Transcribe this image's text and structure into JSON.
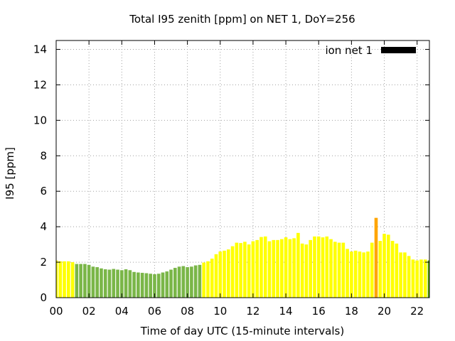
{
  "chart_data": {
    "type": "bar",
    "title": "Total I95 zenith [ppm] on NET 1, DoY=256",
    "xlabel": "Time of day UTC (15-minute intervals)",
    "ylabel": "I95 [ppm]",
    "xlim": [
      0,
      22.75
    ],
    "ylim": [
      0,
      14.5
    ],
    "x_ticks": [
      "00",
      "02",
      "04",
      "06",
      "08",
      "10",
      "12",
      "14",
      "16",
      "18",
      "20",
      "22"
    ],
    "y_ticks": [
      "0",
      "2",
      "4",
      "6",
      "8",
      "10",
      "12",
      "14"
    ],
    "grid": true,
    "legend": {
      "placement": "top-right",
      "label": "ion net 1",
      "color": "#000000"
    },
    "colors": {
      "green": "#7ab648",
      "yellow": "#ffff00",
      "orange": "#ffa500",
      "last": "#55aa00"
    },
    "bar_interval_hours": 0.25,
    "x": [
      0.0,
      0.25,
      0.5,
      0.75,
      1.0,
      1.25,
      1.5,
      1.75,
      2.0,
      2.25,
      2.5,
      2.75,
      3.0,
      3.25,
      3.5,
      3.75,
      4.0,
      4.25,
      4.5,
      4.75,
      5.0,
      5.25,
      5.5,
      5.75,
      6.0,
      6.25,
      6.5,
      6.75,
      7.0,
      7.25,
      7.5,
      7.75,
      8.0,
      8.25,
      8.5,
      8.75,
      9.0,
      9.25,
      9.5,
      9.75,
      10.0,
      10.25,
      10.5,
      10.75,
      11.0,
      11.25,
      11.5,
      11.75,
      12.0,
      12.25,
      12.5,
      12.75,
      13.0,
      13.25,
      13.5,
      13.75,
      14.0,
      14.25,
      14.5,
      14.75,
      15.0,
      15.25,
      15.5,
      15.75,
      16.0,
      16.25,
      16.5,
      16.75,
      17.0,
      17.25,
      17.5,
      17.75,
      18.0,
      18.25,
      18.5,
      18.75,
      19.0,
      19.25,
      19.5,
      19.75,
      20.0,
      20.25,
      20.5,
      20.75,
      21.0,
      21.25,
      21.5,
      21.75,
      22.0,
      22.25,
      22.5,
      22.75
    ],
    "values": [
      2.1,
      2.05,
      2.05,
      2.05,
      2.0,
      1.9,
      1.9,
      1.9,
      1.85,
      1.75,
      1.72,
      1.65,
      1.6,
      1.58,
      1.62,
      1.58,
      1.55,
      1.6,
      1.55,
      1.45,
      1.42,
      1.4,
      1.38,
      1.35,
      1.32,
      1.35,
      1.42,
      1.48,
      1.58,
      1.68,
      1.75,
      1.78,
      1.72,
      1.75,
      1.82,
      1.85,
      1.98,
      2.05,
      2.2,
      2.45,
      2.6,
      2.65,
      2.72,
      2.9,
      3.1,
      3.08,
      3.15,
      3.0,
      3.18,
      3.25,
      3.42,
      3.45,
      3.18,
      3.25,
      3.25,
      3.3,
      3.4,
      3.3,
      3.35,
      3.65,
      3.05,
      3.0,
      3.25,
      3.45,
      3.45,
      3.4,
      3.45,
      3.3,
      3.15,
      3.1,
      3.1,
      2.75,
      2.6,
      2.65,
      2.6,
      2.55,
      2.6,
      3.1,
      4.5,
      3.2,
      3.6,
      3.55,
      3.2,
      3.05,
      2.55,
      2.55,
      2.35,
      2.15,
      2.1,
      2.15,
      2.15,
      2.1
    ],
    "bar_colors": [
      "yellow",
      "yellow",
      "yellow",
      "yellow",
      "yellow",
      "green",
      "green",
      "green",
      "green",
      "green",
      "green",
      "green",
      "green",
      "green",
      "green",
      "green",
      "green",
      "green",
      "green",
      "green",
      "green",
      "green",
      "green",
      "green",
      "green",
      "green",
      "green",
      "green",
      "green",
      "green",
      "green",
      "green",
      "green",
      "green",
      "green",
      "green",
      "yellow",
      "yellow",
      "yellow",
      "yellow",
      "yellow",
      "yellow",
      "yellow",
      "yellow",
      "yellow",
      "yellow",
      "yellow",
      "yellow",
      "yellow",
      "yellow",
      "yellow",
      "yellow",
      "yellow",
      "yellow",
      "yellow",
      "yellow",
      "yellow",
      "yellow",
      "yellow",
      "yellow",
      "yellow",
      "yellow",
      "yellow",
      "yellow",
      "yellow",
      "yellow",
      "yellow",
      "yellow",
      "yellow",
      "yellow",
      "yellow",
      "yellow",
      "yellow",
      "yellow",
      "yellow",
      "yellow",
      "yellow",
      "yellow",
      "orange",
      "yellow",
      "yellow",
      "yellow",
      "yellow",
      "yellow",
      "yellow",
      "yellow",
      "yellow",
      "yellow",
      "yellow",
      "yellow",
      "yellow",
      "last"
    ]
  }
}
